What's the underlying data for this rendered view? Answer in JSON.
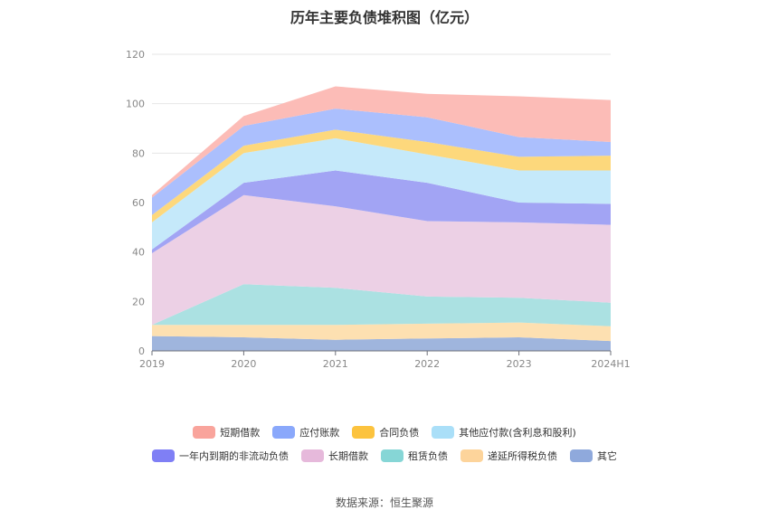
{
  "title": "历年主要负债堆积图（亿元）",
  "source_text": "数据来源：恒生聚源",
  "chart_data": {
    "type": "area",
    "stacked": true,
    "categories": [
      "2019",
      "2020",
      "2021",
      "2022",
      "2023",
      "2024H1"
    ],
    "ylim": [
      0,
      120
    ],
    "yticks": [
      0,
      20,
      40,
      60,
      80,
      100,
      120
    ],
    "grid": true,
    "legend_position": "bottom",
    "series": [
      {
        "name": "其它",
        "color": "#9fb5dd",
        "values": [
          6,
          5.5,
          4.5,
          5,
          5.5,
          4
        ]
      },
      {
        "name": "递延所得税负债",
        "color": "#fde0b1",
        "values": [
          4.5,
          5,
          6,
          6,
          6,
          6
        ]
      },
      {
        "name": "租赁负债",
        "color": "#abe1e2",
        "values": [
          0,
          16.5,
          15,
          11,
          10,
          9.5
        ]
      },
      {
        "name": "长期借款",
        "color": "#ecd0e5",
        "values": [
          29,
          36,
          33,
          30.5,
          30.5,
          31.5
        ]
      },
      {
        "name": "一年内到期的非流动负债",
        "color": "#a2a4f4",
        "values": [
          1.5,
          5,
          14.5,
          15.5,
          8,
          8.5
        ]
      },
      {
        "name": "其他应付款(含利息和股利)",
        "color": "#c5e9fa",
        "values": [
          11,
          12,
          13,
          11.5,
          13,
          13.5
        ]
      },
      {
        "name": "合同负债",
        "color": "#fdd87c",
        "values": [
          3,
          3,
          3.5,
          5,
          5.5,
          6
        ]
      },
      {
        "name": "应付账款",
        "color": "#abbffd",
        "values": [
          7,
          8,
          8.5,
          10,
          8,
          5.5
        ]
      },
      {
        "name": "短期借款",
        "color": "#fcbcb7",
        "values": [
          1,
          4,
          9,
          9.5,
          16.5,
          17
        ]
      }
    ],
    "legend_rows": [
      [
        {
          "name": "短期借款",
          "color": "#f9a49c"
        },
        {
          "name": "应付账款",
          "color": "#8aa8fb"
        },
        {
          "name": "合同负债",
          "color": "#fcc33e"
        },
        {
          "name": "其他应付款(含利息和股利)",
          "color": "#aadff8"
        }
      ],
      [
        {
          "name": "一年内到期的非流动负债",
          "color": "#7f7ff5"
        },
        {
          "name": "长期借款",
          "color": "#e6b9db"
        },
        {
          "name": "租赁负债",
          "color": "#86d6d6"
        },
        {
          "name": "递延所得税负债",
          "color": "#fdd49b"
        },
        {
          "name": "其它",
          "color": "#8fa9dc"
        }
      ]
    ]
  }
}
